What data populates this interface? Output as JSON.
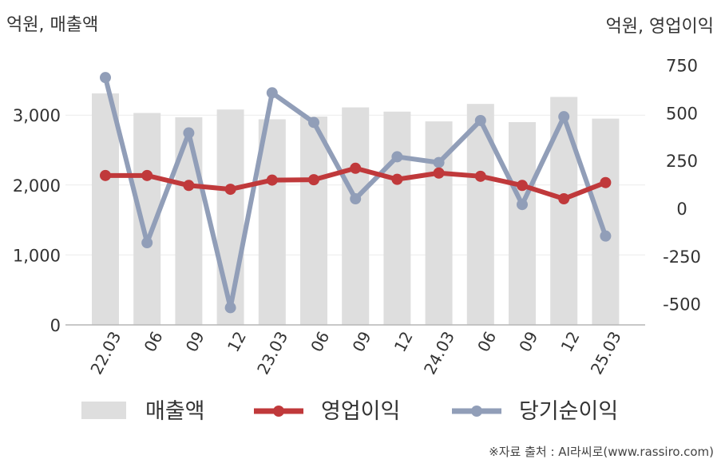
{
  "chart_data": {
    "type": "bar+line",
    "categories": [
      "22.03",
      "06",
      "09",
      "12",
      "23.03",
      "06",
      "09",
      "12",
      "24.03",
      "06",
      "09",
      "12",
      "25.03"
    ],
    "left_axis": {
      "unit_label": "억원, 매출액",
      "range": [
        0,
        3600
      ],
      "ticks": [
        0,
        1000,
        2000,
        3000
      ],
      "tick_labels": [
        "0",
        "1,000",
        "2,000",
        "3,000"
      ]
    },
    "right_axis": {
      "unit_label": "억원, 영업이익",
      "range": [
        -600,
        750
      ],
      "ticks": [
        -500,
        -250,
        0,
        250,
        500,
        750
      ],
      "tick_labels": [
        "-500",
        "-250",
        "0",
        "250",
        "500",
        "750"
      ]
    },
    "series": [
      {
        "name": "매출액",
        "kind": "bar",
        "axis": "left",
        "color": "#dedede",
        "values": [
          3310,
          3030,
          2970,
          3080,
          2940,
          2980,
          3110,
          3050,
          2910,
          3160,
          2900,
          3260,
          2950
        ]
      },
      {
        "name": "영업이익",
        "kind": "line",
        "axis": "right",
        "color": "#c0393b",
        "values": [
          172,
          172,
          120,
          100,
          148,
          150,
          210,
          152,
          185,
          168,
          120,
          50,
          135
        ]
      },
      {
        "name": "당기순이익",
        "kind": "line",
        "axis": "right",
        "color": "#919eb8",
        "values": [
          685,
          -180,
          395,
          -520,
          605,
          450,
          50,
          270,
          240,
          460,
          20,
          480,
          -145
        ]
      }
    ],
    "grid": true,
    "legend_position": "bottom"
  },
  "source_text": "※자료 출처 : AI라씨로(www.rassiro.com)"
}
